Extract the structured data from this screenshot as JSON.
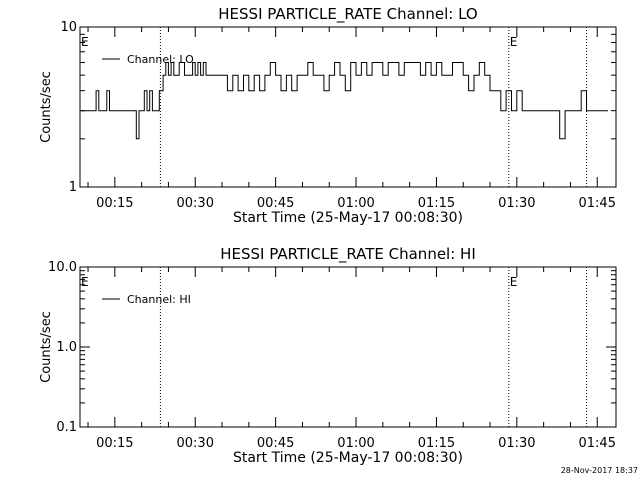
{
  "footer": {
    "timestamp": "28-Nov-2017 18:37"
  },
  "colors": {
    "foreground": "#000000",
    "background": "#ffffff"
  },
  "chart_data": [
    {
      "type": "line",
      "title": "HESSI PARTICLE_RATE Channel: LO",
      "xlabel": "Start Time (25-May-17 00:08:30)",
      "ylabel": "Counts/sec",
      "yscale": "log",
      "ylim": [
        1,
        10
      ],
      "xlim": [
        "00:08:30",
        "01:48:30"
      ],
      "xticks": [
        "00:15",
        "00:30",
        "00:45",
        "01:00",
        "01:15",
        "01:30",
        "01:45"
      ],
      "yticks": [
        "1",
        "10"
      ],
      "legend": {
        "position": "top-left",
        "entries": [
          "Channel: LO"
        ]
      },
      "annotations": [
        {
          "text": "E",
          "x": "00:08:30"
        },
        {
          "text": "E",
          "x": "01:28:30"
        }
      ],
      "vlines": [
        "00:23:30",
        "01:28:30",
        "01:43:00"
      ],
      "series": [
        {
          "name": "Channel: LO",
          "x": [
            8.5,
            10.5,
            11,
            11.5,
            12,
            12.5,
            13,
            13.5,
            14,
            14.5,
            16,
            18,
            19,
            19.5,
            20,
            20.5,
            21,
            21.5,
            22,
            23,
            23.3,
            24,
            24.5,
            25,
            25.5,
            26,
            26.5,
            27,
            28,
            29,
            29.5,
            30,
            30.5,
            31,
            31.5,
            32,
            33,
            34,
            35,
            36,
            37,
            38,
            39,
            40,
            41,
            42,
            43,
            44,
            45,
            46,
            47,
            48,
            49,
            50,
            51,
            52,
            53,
            54,
            55,
            56,
            57,
            58,
            59,
            60,
            61,
            62,
            63,
            64,
            65,
            66,
            67,
            68,
            69,
            70,
            71,
            72,
            73,
            74,
            75,
            76,
            77,
            78,
            79,
            80,
            81,
            82,
            83,
            84,
            85,
            86,
            87,
            88,
            89,
            90,
            91,
            92,
            93,
            94,
            95,
            96,
            97,
            98,
            99,
            100,
            101,
            102,
            103,
            104,
            105,
            106,
            107
          ],
          "values": [
            3,
            3,
            3,
            4,
            3,
            3,
            3,
            4,
            3,
            3,
            3,
            3,
            2,
            3,
            3,
            4,
            3,
            4,
            3,
            3,
            4,
            5,
            6,
            5,
            6,
            5,
            5,
            6,
            5,
            5,
            6,
            5,
            6,
            5,
            6,
            5,
            5,
            5,
            5,
            4,
            5,
            4,
            5,
            4,
            5,
            4,
            5,
            6,
            5,
            4,
            5,
            4,
            5,
            5,
            6,
            5,
            5,
            4,
            5,
            6,
            5,
            4,
            6,
            5,
            6,
            5,
            6,
            6,
            5,
            6,
            6,
            5,
            6,
            6,
            6,
            5,
            6,
            5,
            6,
            5,
            5,
            6,
            6,
            5,
            4,
            5,
            6,
            5,
            4,
            4,
            3,
            4,
            3,
            4,
            3,
            3,
            3,
            3,
            3,
            3,
            3,
            2,
            3,
            3,
            3,
            4,
            3,
            3,
            3,
            3,
            3
          ]
        }
      ]
    },
    {
      "type": "line",
      "title": "HESSI PARTICLE_RATE Channel: HI",
      "xlabel": "Start Time (25-May-17 00:08:30)",
      "ylabel": "Counts/sec",
      "yscale": "log",
      "ylim": [
        0.1,
        10
      ],
      "xlim": [
        "00:08:30",
        "01:48:30"
      ],
      "xticks": [
        "00:15",
        "00:30",
        "00:45",
        "01:00",
        "01:15",
        "01:30",
        "01:45"
      ],
      "yticks": [
        "0.1",
        "1.0",
        "10.0"
      ],
      "legend": {
        "position": "top-left",
        "entries": [
          "Channel: HI"
        ]
      },
      "annotations": [
        {
          "text": "E",
          "x": "00:08:30"
        },
        {
          "text": "E",
          "x": "01:28:30"
        }
      ],
      "vlines": [
        "00:23:30",
        "01:28:30",
        "01:43:00"
      ],
      "series": [
        {
          "name": "Channel: HI",
          "x": [],
          "values": []
        }
      ]
    }
  ]
}
